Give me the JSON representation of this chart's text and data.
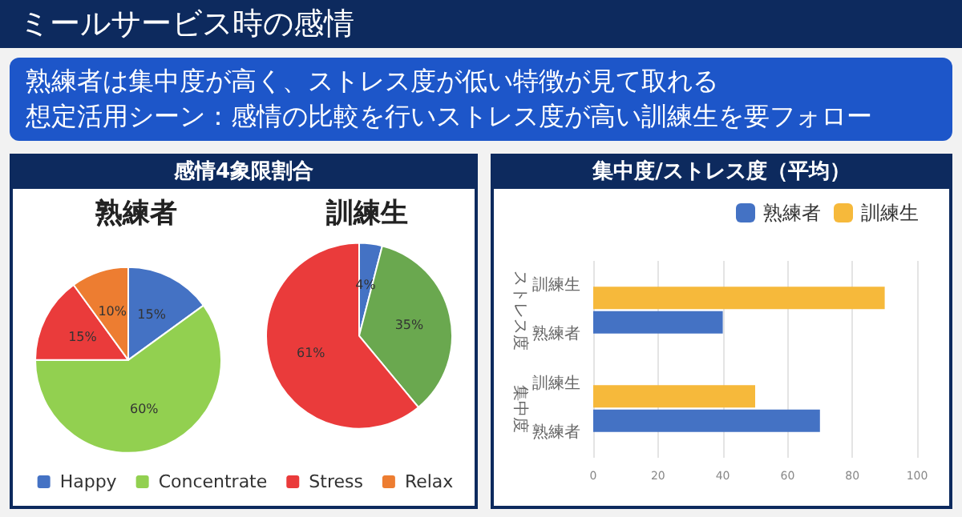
{
  "chart_data": [
    {
      "type": "pie",
      "title": "熟練者",
      "annotations": [
        "ミールサービス時の感情",
        "熟練者は集中度が高く、ストレス度が低い特徴が見て取れる",
        "想定活用シーン：感情の比較を行いストレス度が高い訓練生を要フォロー",
        "感情4象限割合"
      ],
      "categories": [
        "Happy",
        "Concentrate",
        "Stress",
        "Relax"
      ],
      "values": [
        15,
        60,
        15,
        10
      ],
      "colors": [
        "#4472c4",
        "#92d050",
        "#ea3b3b",
        "#ed7d31"
      ],
      "value_labels": [
        "15%",
        "60%",
        "15%",
        "10%"
      ],
      "legend": "bottom"
    },
    {
      "type": "pie",
      "title": "訓練生",
      "categories": [
        null,
        null,
        null
      ],
      "values": [
        4,
        35,
        61
      ],
      "colors": [
        "#4472c4",
        "#6aa84f",
        "#ea3b3b"
      ],
      "value_labels": [
        "4%",
        "35%",
        "61%"
      ]
    },
    {
      "type": "bar",
      "title": "集中度/ストレス度（平均）",
      "orientation": "horizontal",
      "categories": [
        "訓練生",
        "熟練者",
        "訓練生",
        "熟練者"
      ],
      "series": [
        {
          "name": "熟練者",
          "color": "#4472c4",
          "values": [
            null,
            40,
            null,
            70
          ]
        },
        {
          "name": "訓練生",
          "color": "#f6b93b",
          "values": [
            90,
            null,
            50,
            null
          ]
        }
      ],
      "annotations": [
        "ストレス度",
        "集中度"
      ],
      "xlim": [
        0,
        100
      ],
      "xticks": [
        0,
        20,
        40,
        60,
        80,
        100
      ],
      "grid": "x",
      "legend": "top right"
    }
  ]
}
